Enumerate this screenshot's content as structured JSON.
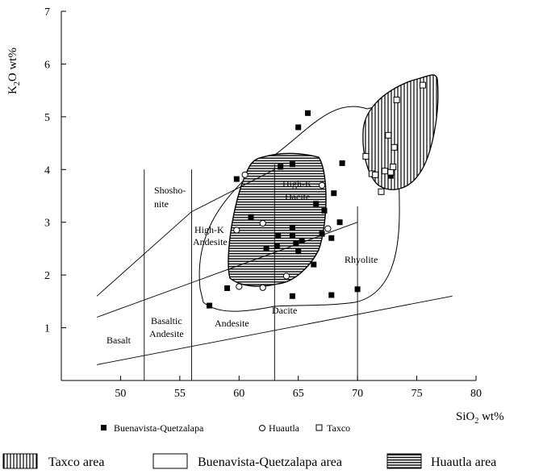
{
  "chart_data": {
    "type": "scatter",
    "title": "",
    "xlabel": "SiO",
    "xlabel_sub": "2",
    "xlabel_suffix": " wt%",
    "ylabel": "K",
    "ylabel_sub": "2",
    "ylabel_suffix": "O wt%",
    "xlim": [
      45,
      80
    ],
    "ylim": [
      0,
      7
    ],
    "x_ticks": [
      50,
      55,
      60,
      65,
      70,
      75,
      80
    ],
    "y_ticks": [
      1,
      2,
      3,
      4,
      5,
      6,
      7
    ],
    "grid": false,
    "legend_position": "bottom",
    "series": [
      {
        "name": "Buenavista-Quetzalapa",
        "marker": "filled-square",
        "points": [
          [
            57.5,
            1.42
          ],
          [
            59.0,
            1.75
          ],
          [
            59.8,
            3.82
          ],
          [
            61.0,
            3.1
          ],
          [
            62.3,
            2.5
          ],
          [
            63.2,
            2.55
          ],
          [
            63.3,
            2.75
          ],
          [
            63.5,
            4.05
          ],
          [
            64.5,
            4.1
          ],
          [
            64.5,
            2.9
          ],
          [
            64.5,
            2.75
          ],
          [
            64.5,
            1.6
          ],
          [
            64.8,
            2.6
          ],
          [
            65.0,
            2.45
          ],
          [
            65.0,
            4.8
          ],
          [
            65.3,
            2.65
          ],
          [
            65.8,
            5.07
          ],
          [
            66.3,
            2.2
          ],
          [
            66.5,
            3.35
          ],
          [
            67.0,
            2.78
          ],
          [
            67.2,
            3.22
          ],
          [
            67.8,
            2.7
          ],
          [
            67.8,
            1.62
          ],
          [
            68.0,
            3.55
          ],
          [
            68.5,
            3.0
          ],
          [
            68.7,
            4.12
          ],
          [
            70.0,
            1.73
          ],
          [
            72.8,
            3.88
          ]
        ]
      },
      {
        "name": "Huautla",
        "marker": "open-circle",
        "points": [
          [
            59.8,
            2.85
          ],
          [
            60.0,
            1.78
          ],
          [
            60.5,
            3.9
          ],
          [
            62.0,
            2.98
          ],
          [
            62.0,
            1.76
          ],
          [
            64.0,
            1.98
          ],
          [
            67.0,
            3.7
          ],
          [
            67.5,
            2.88
          ]
        ]
      },
      {
        "name": "Taxco",
        "marker": "open-square",
        "points": [
          [
            70.7,
            4.25
          ],
          [
            71.2,
            3.92
          ],
          [
            71.5,
            3.9
          ],
          [
            72.0,
            3.58
          ],
          [
            72.3,
            3.97
          ],
          [
            72.6,
            4.65
          ],
          [
            72.8,
            3.95
          ],
          [
            73.0,
            4.05
          ],
          [
            73.3,
            5.32
          ],
          [
            75.5,
            5.6
          ],
          [
            73.1,
            4.42
          ]
        ]
      }
    ],
    "fields": {
      "basalt": "Basalt",
      "basaltic_andesite_1": "Basaltic",
      "basaltic_andesite_2": "Andesite",
      "andesite": "Andesite",
      "dacite": "Dacite",
      "rhyolite": "Rhyolite",
      "shoshonite_1": "Shosho-",
      "shoshonite_2": "nite",
      "highk_andesite_1": "High-K",
      "highk_andesite_2": "Andesite",
      "highk_dacite_1": "High-K",
      "highk_dacite_2": "Dacite"
    },
    "areas": [
      {
        "name": "Taxco area",
        "pattern": "vertical-lines"
      },
      {
        "name": "Buenavista-Quetzalapa area",
        "pattern": "open"
      },
      {
        "name": "Huautla area",
        "pattern": "horizontal-lines"
      }
    ]
  }
}
